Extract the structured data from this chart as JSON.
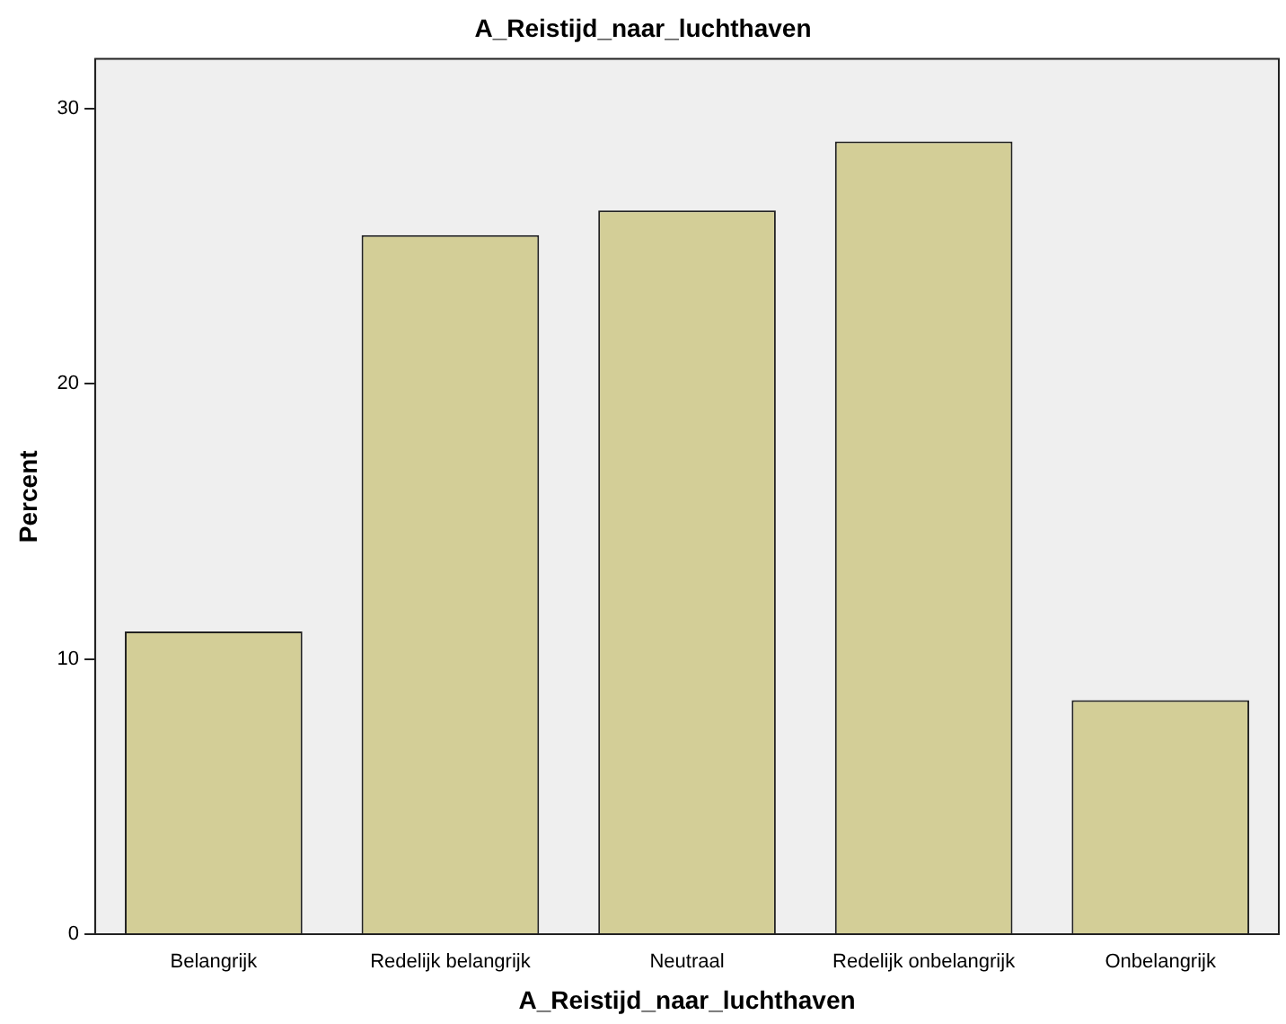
{
  "chart_data": {
    "type": "bar",
    "title": "A_Reistijd_naar_luchthaven",
    "xlabel": "A_Reistijd_naar_luchthaven",
    "ylabel": "Percent",
    "categories": [
      "Belangrijk",
      "Redelijk belangrijk",
      "Neutraal",
      "Redelijk onbelangrijk",
      "Onbelangrijk"
    ],
    "values": [
      11.0,
      25.4,
      26.3,
      28.8,
      8.5
    ],
    "color": "#d3ce97",
    "ylim": [
      0,
      31.8
    ],
    "yticks": [
      0,
      10,
      20,
      30
    ],
    "grid": false,
    "legend": false
  }
}
